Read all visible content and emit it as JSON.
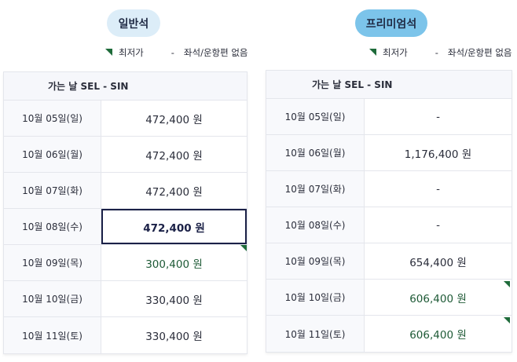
{
  "colors": {
    "economy_pill_bg": "#dcedf8",
    "premium_pill_bg": "#7cc4ea",
    "lowest_price_marker": "#1e6b3a",
    "lowest_price_text": "#1e5a36",
    "selected_border": "#1b2147"
  },
  "legend": {
    "lowest_label": "최저가",
    "dash": "-",
    "unavailable_label": "좌석/운항편 없음"
  },
  "economy": {
    "tab_label": "일반석",
    "header": "가는 날 SEL - SIN",
    "rows": [
      {
        "date": "10월 05일(일)",
        "price": "472,400 원"
      },
      {
        "date": "10월 06일(월)",
        "price": "472,400 원"
      },
      {
        "date": "10월 07일(화)",
        "price": "472,400 원"
      },
      {
        "date": "10월 08일(수)",
        "price": "472,400 원",
        "selected": true
      },
      {
        "date": "10월 09일(목)",
        "price": "300,400 원",
        "lowest": true
      },
      {
        "date": "10월 10일(금)",
        "price": "330,400 원"
      },
      {
        "date": "10월 11일(토)",
        "price": "330,400 원"
      }
    ]
  },
  "premium": {
    "tab_label": "프리미엄석",
    "header": "가는 날 SEL - SIN",
    "rows": [
      {
        "date": "10월 05일(일)",
        "price": "-"
      },
      {
        "date": "10월 06일(월)",
        "price": "1,176,400 원"
      },
      {
        "date": "10월 07일(화)",
        "price": "-"
      },
      {
        "date": "10월 08일(수)",
        "price": "-"
      },
      {
        "date": "10월 09일(목)",
        "price": "654,400 원"
      },
      {
        "date": "10월 10일(금)",
        "price": "606,400 원",
        "lowest": true
      },
      {
        "date": "10월 11일(토)",
        "price": "606,400 원",
        "lowest": true
      }
    ]
  }
}
